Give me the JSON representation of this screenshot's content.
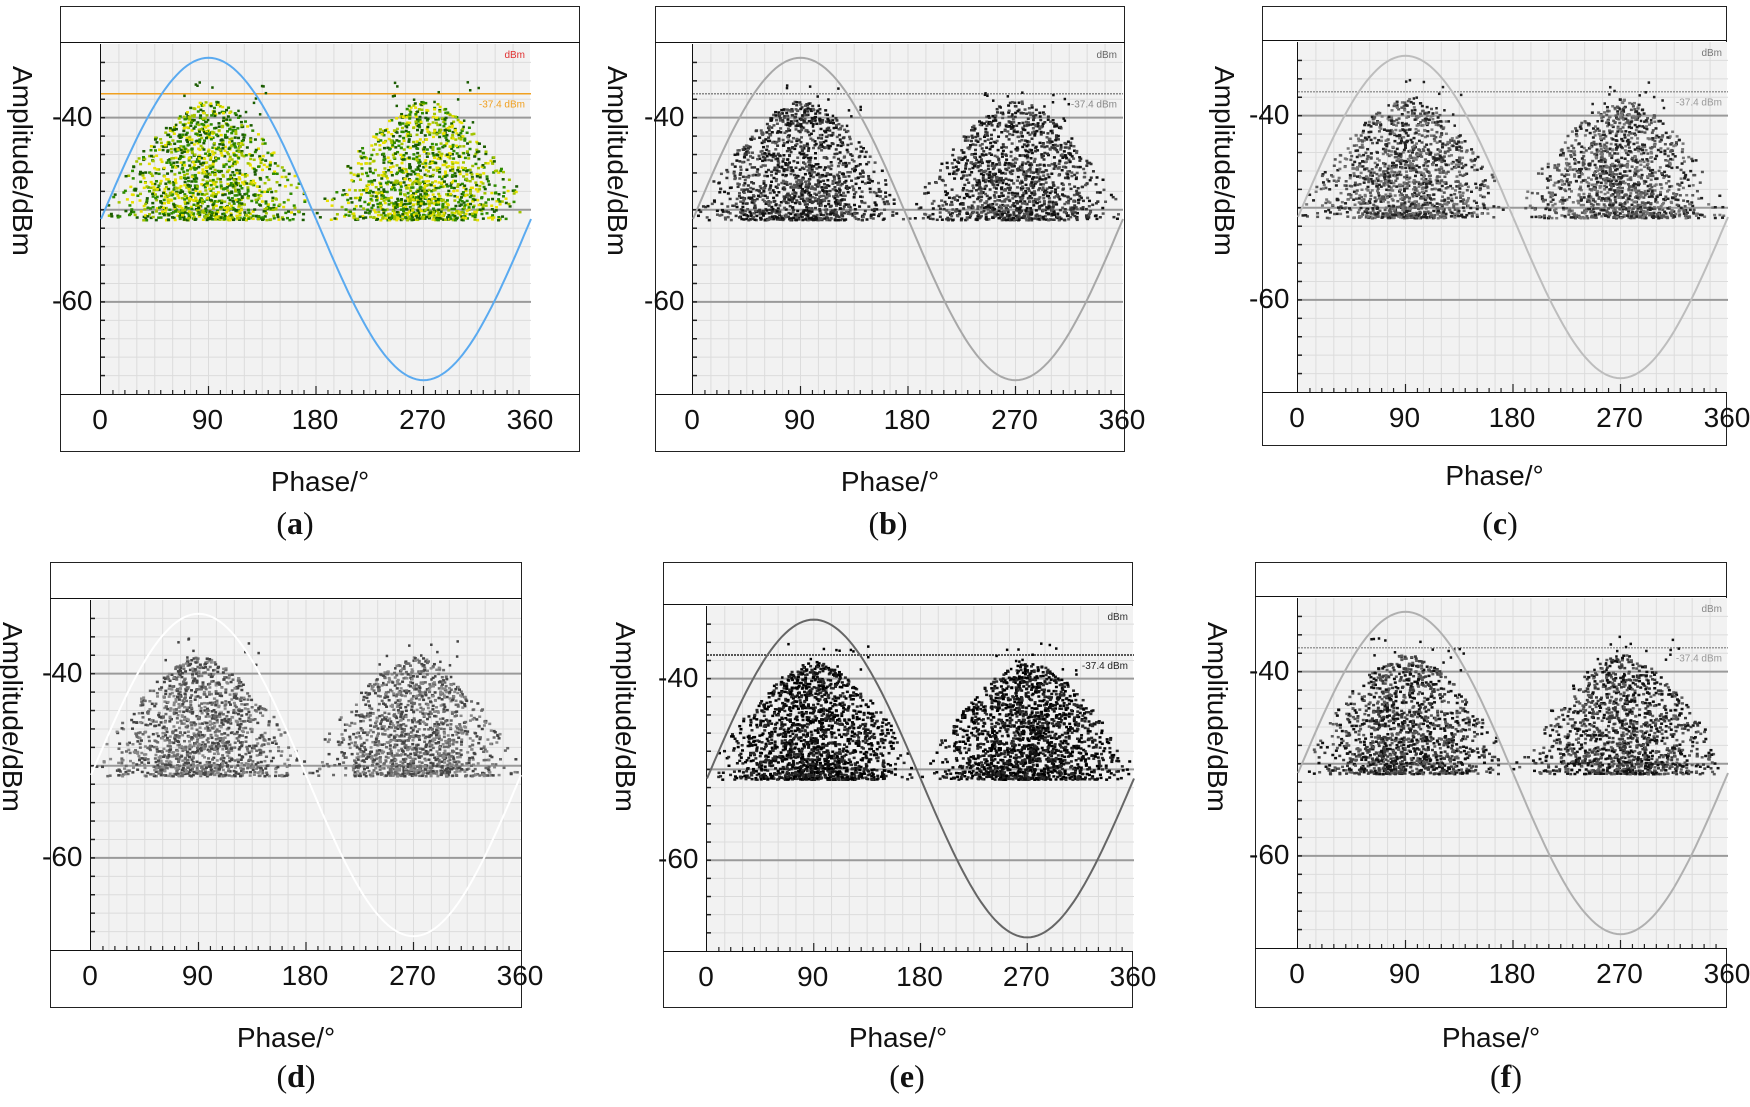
{
  "chart_data": [
    {
      "id": "a",
      "caption": "a",
      "type": "scatter",
      "theme": "color",
      "ylabel": "Amplitude/dBm",
      "xlabel": "Phase/°",
      "xticks": [
        "0",
        "90",
        "180",
        "270",
        "360"
      ],
      "yticks": [
        "-40",
        "-60"
      ],
      "xlim": [
        0,
        360
      ],
      "ylim": [
        -70,
        -32
      ],
      "unit_label": "dBm",
      "threshold_label": "-37.4 dBm",
      "threshold": -37.4,
      "floor": -51,
      "clusters": [
        {
          "center": 90,
          "peak": -42
        },
        {
          "center": 270,
          "peak": -42
        }
      ],
      "reference_sine": {
        "mid": -51,
        "amplitude": 17.5,
        "peak_phase": 90
      },
      "colors": {
        "points": [
          "#1a5c00",
          "#2e8b00",
          "#a3c400",
          "#e8e000"
        ],
        "sine": "#5aaaf0",
        "threshold": "#f0a020",
        "unit": "#e03030"
      }
    },
    {
      "id": "b",
      "caption": "b",
      "type": "scatter",
      "theme": "gray",
      "ylabel": "Amplitude/dBm",
      "xlabel": "Phase/°",
      "xticks": [
        "0",
        "90",
        "180",
        "270",
        "360"
      ],
      "yticks": [
        "-40",
        "-60"
      ],
      "xlim": [
        0,
        360
      ],
      "ylim": [
        -70,
        -32
      ],
      "unit_label": "dBm",
      "threshold_label": "-37.4 dBm",
      "threshold": -37.4,
      "floor": -51,
      "clusters": [
        {
          "center": 90,
          "peak": -42
        },
        {
          "center": 270,
          "peak": -42
        }
      ],
      "reference_sine": {
        "mid": -51,
        "amplitude": 17.5,
        "peak_phase": 90
      },
      "colors": {
        "points": [
          "#111111",
          "#333333",
          "#555555"
        ],
        "sine": "#a8a8a8",
        "threshold": "#888888",
        "unit": "#666666"
      }
    },
    {
      "id": "c",
      "caption": "c",
      "type": "scatter",
      "theme": "gray",
      "ylabel": "Amplitude/dBm",
      "xlabel": "Phase/°",
      "xticks": [
        "0",
        "90",
        "180",
        "270",
        "360"
      ],
      "yticks": [
        "-40",
        "-60"
      ],
      "xlim": [
        0,
        360
      ],
      "ylim": [
        -70,
        -32
      ],
      "unit_label": "dBm",
      "threshold_label": "-37.4 dBm",
      "threshold": -37.4,
      "floor": -51,
      "clusters": [
        {
          "center": 90,
          "peak": -42
        },
        {
          "center": 270,
          "peak": -42
        }
      ],
      "reference_sine": {
        "mid": -51,
        "amplitude": 17.5,
        "peak_phase": 90
      },
      "colors": {
        "points": [
          "#222222",
          "#555555",
          "#777777"
        ],
        "sine": "#bdbdbd",
        "threshold": "#999999",
        "unit": "#777777"
      }
    },
    {
      "id": "d",
      "caption": "d",
      "type": "scatter",
      "theme": "gray",
      "ylabel": "Amplitude/dBm",
      "xlabel": "Phase/°",
      "xticks": [
        "0",
        "90",
        "180",
        "270",
        "360"
      ],
      "yticks": [
        "-40",
        "-60"
      ],
      "xlim": [
        0,
        360
      ],
      "ylim": [
        -70,
        -32
      ],
      "unit_label": "",
      "threshold_label": "",
      "threshold": null,
      "floor": -51,
      "clusters": [
        {
          "center": 90,
          "peak": -42
        },
        {
          "center": 270,
          "peak": -42
        }
      ],
      "reference_sine": {
        "mid": -51,
        "amplitude": 17.5,
        "peak_phase": 90
      },
      "colors": {
        "points": [
          "#444444",
          "#6a6a6a",
          "#888888"
        ],
        "sine": "#ffffff",
        "threshold": "#bbbbbb",
        "unit": "#bbbbbb"
      }
    },
    {
      "id": "e",
      "caption": "e",
      "type": "scatter",
      "theme": "gray",
      "ylabel": "Amplitude/dBm",
      "xlabel": "Phase/°",
      "xticks": [
        "0",
        "90",
        "180",
        "270",
        "360"
      ],
      "yticks": [
        "-40",
        "-60"
      ],
      "xlim": [
        0,
        360
      ],
      "ylim": [
        -70,
        -32
      ],
      "unit_label": "dBm",
      "threshold_label": "-37.4 dBm",
      "threshold": -37.4,
      "floor": -51,
      "clusters": [
        {
          "center": 90,
          "peak": -42
        },
        {
          "center": 270,
          "peak": -42
        }
      ],
      "reference_sine": {
        "mid": -51,
        "amplitude": 17.5,
        "peak_phase": 90
      },
      "colors": {
        "points": [
          "#000000",
          "#111111",
          "#2a2a2a"
        ],
        "sine": "#666666",
        "threshold": "#222222",
        "unit": "#333333"
      }
    },
    {
      "id": "f",
      "caption": "f",
      "type": "scatter",
      "theme": "gray",
      "ylabel": "Amplitude/dBm",
      "xlabel": "Phase/°",
      "xticks": [
        "0",
        "90",
        "180",
        "270",
        "360"
      ],
      "yticks": [
        "-40",
        "-60"
      ],
      "xlim": [
        0,
        360
      ],
      "ylim": [
        -70,
        -32
      ],
      "unit_label": "dBm",
      "threshold_label": "-37.4 dBm",
      "threshold": -37.4,
      "floor": -51,
      "clusters": [
        {
          "center": 90,
          "peak": -42
        },
        {
          "center": 270,
          "peak": -42
        }
      ],
      "reference_sine": {
        "mid": -51,
        "amplitude": 17.5,
        "peak_phase": 90
      },
      "colors": {
        "points": [
          "#111111",
          "#3a3a3a",
          "#5a5a5a"
        ],
        "sine": "#b0b0b0",
        "threshold": "#999999",
        "unit": "#888888"
      }
    }
  ]
}
